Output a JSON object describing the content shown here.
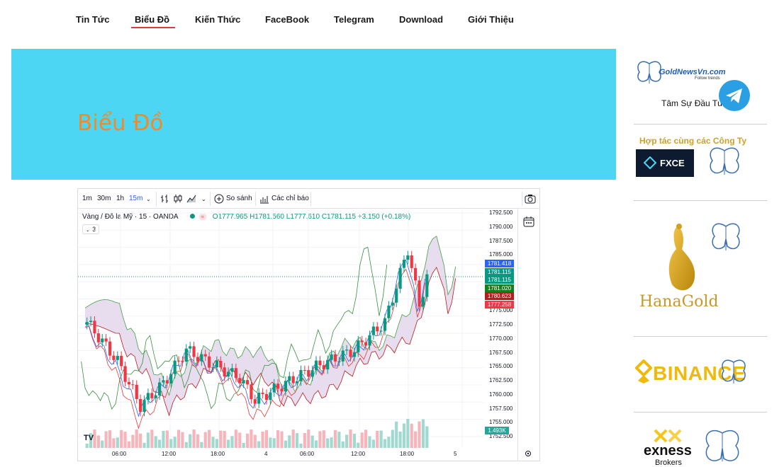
{
  "nav": {
    "items": [
      "Tin Tức",
      "Biểu Đồ",
      "Kiến Thức",
      "FaceBook",
      "Telegram",
      "Download",
      "Giới Thiệu"
    ],
    "active": "Biểu Đồ"
  },
  "hero": {
    "title": "Biểu Đồ"
  },
  "chart": {
    "toolbar": {
      "intervals": [
        "1m",
        "30m",
        "1h",
        "15m"
      ],
      "active_interval": "15m",
      "compare": "So sánh",
      "indicators": "Các chỉ báo"
    },
    "legend": {
      "symbol": "Vàng / Đô la Mỹ · 15 · OANDA",
      "ohlc": "O1777.965 H1781.560 L1777.610 C1781.115 +3.150 (+0.18%)",
      "collapse_count": "3"
    },
    "price_ticks": [
      "1792.500",
      "1790.000",
      "1787.500",
      "1785.000",
      "1775.000",
      "1772.500",
      "1770.000",
      "1767.500",
      "1765.000",
      "1762.500",
      "1760.000",
      "1757.500",
      "1755.000",
      "1752.500"
    ],
    "price_labels": [
      {
        "text": "1781.418",
        "color": "#2962ff"
      },
      {
        "text": "1781.115",
        "color": "#089981"
      },
      {
        "text": "1781.115",
        "color": "#089981"
      },
      {
        "text": "1781.020",
        "color": "#1b7c1b"
      },
      {
        "text": "1780.623",
        "color": "#b71c1c"
      },
      {
        "text": "1777.258",
        "color": "#f23645"
      }
    ],
    "volume_label": "1.493K",
    "time_ticks": [
      "06:00",
      "12:00",
      "18:00",
      "4",
      "06:00",
      "12:00",
      "18:00",
      "5"
    ],
    "logo": "TV"
  },
  "sidebar": {
    "logo_text": "GoldNewsVn.com",
    "logo_sub": "Follow trends",
    "tam_su": "Tâm Sự Đầu Tư",
    "partners_title": "Hợp tác cùng các Công Ty",
    "fxce": "FXCE",
    "hanagold": "HanaGold",
    "binance": "BINANCE",
    "exness": "exness",
    "exness_sub": "Brokers"
  },
  "colors": {
    "accent_orange": "#f08a2c",
    "hero_bg": "#4dd6f4",
    "nav_active_underline": "#e53935",
    "candle_up": "#089981",
    "candle_down": "#f23645"
  }
}
